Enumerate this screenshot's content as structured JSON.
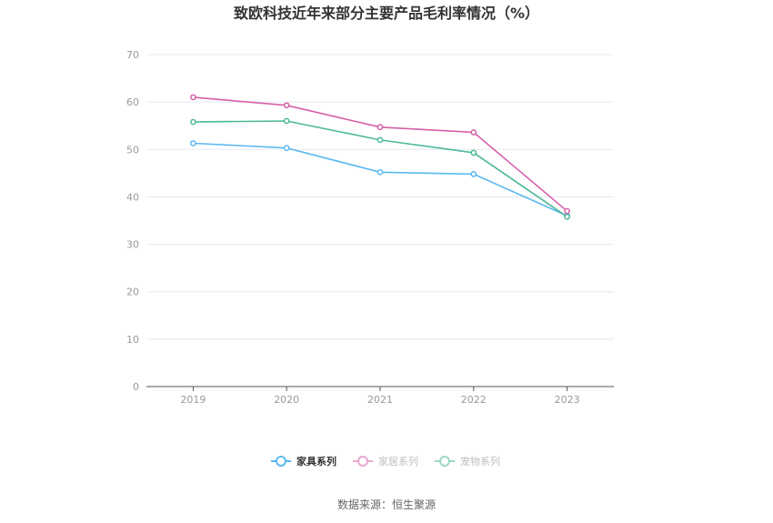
{
  "chart_data": {
    "type": "line",
    "title": "致欧科技近年来部分主要产品毛利率情况（%）",
    "categories": [
      "2019",
      "2020",
      "2021",
      "2022",
      "2023"
    ],
    "ylim": [
      0,
      70
    ],
    "yticks": [
      0,
      10,
      20,
      30,
      40,
      50,
      60,
      70
    ],
    "grid": true,
    "legend_position": "bottom-center",
    "series": [
      {
        "name": "家具系列",
        "color": "#5bb8f0",
        "values": [
          51.3,
          50.3,
          45.2,
          44.8,
          36.0
        ]
      },
      {
        "name": "家居系列",
        "color": "#d460a8",
        "values": [
          61.0,
          59.3,
          54.7,
          53.6,
          37.0
        ]
      },
      {
        "name": "宠物系列",
        "color": "#4db89b",
        "values": [
          55.8,
          56.0,
          52.0,
          49.3,
          35.8
        ]
      }
    ],
    "source": "数据来源：恒生聚源"
  }
}
